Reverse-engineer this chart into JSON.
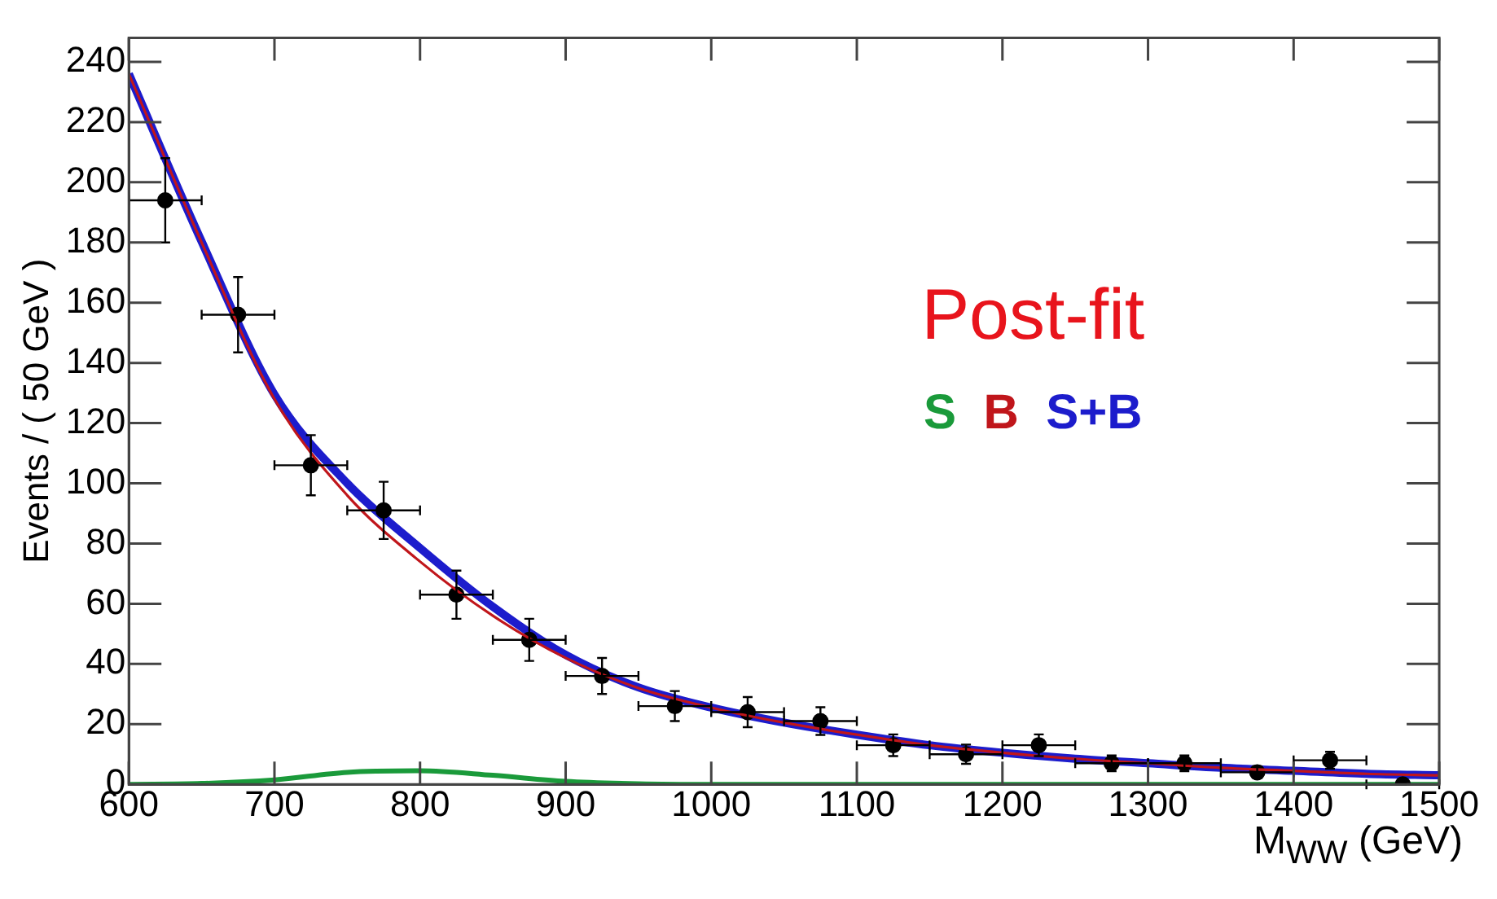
{
  "chart_data": {
    "type": "scatter",
    "ylabel": "Events / ( 50 GeV )",
    "xlabel": "M$_{WW}$ (GeV)",
    "annotations": [
      "Post-fit"
    ],
    "xlim": [
      600,
      1500
    ],
    "xticks": [
      600,
      700,
      800,
      900,
      1000,
      1100,
      1200,
      1300,
      1400,
      1500
    ],
    "ylim": [
      0,
      248
    ],
    "yticks": [
      0,
      20,
      40,
      60,
      80,
      100,
      120,
      140,
      160,
      180,
      200,
      220,
      240
    ],
    "grid": false,
    "legend": "right",
    "marker": "circle",
    "x": [
      625,
      675,
      725,
      775,
      825,
      875,
      925,
      975,
      1025,
      1075,
      1125,
      1175,
      1225,
      1275,
      1325,
      1375,
      1425,
      1475
    ],
    "values": [
      194,
      156,
      106,
      91,
      63,
      48,
      36,
      26,
      24,
      21,
      13,
      10,
      13,
      7,
      7,
      4,
      8,
      0
    ],
    "errors": [
      14,
      12.5,
      10,
      9.5,
      8,
      7,
      6,
      5,
      5,
      4.6,
      3.6,
      3.2,
      3.6,
      2.6,
      2.6,
      2,
      2.8,
      null
    ],
    "xerrors": [
      25,
      25,
      25,
      25,
      25,
      25,
      25,
      25,
      25,
      25,
      25,
      25,
      25,
      25,
      25,
      25,
      25,
      25
    ],
    "series": [
      {
        "name": "S",
        "type": "line",
        "marker": "none",
        "color": "#1a9a3a",
        "x": [
          600,
          650,
          700,
          750,
          800,
          850,
          900,
          950,
          1000,
          1500
        ],
        "values": [
          0,
          0.3,
          1.5,
          4,
          4.5,
          3,
          1,
          0.2,
          0,
          0
        ]
      },
      {
        "name": "B",
        "type": "line",
        "marker": "none",
        "color": "#c0161b",
        "x": [
          600,
          650,
          700,
          750,
          800,
          850,
          900,
          950,
          1000,
          1050,
          1100,
          1150,
          1200,
          1250,
          1300,
          1350,
          1400,
          1450,
          1500
        ],
        "values": [
          236,
          180,
          128,
          96,
          74,
          56,
          42,
          32,
          25.5,
          20.5,
          16.5,
          13,
          10.5,
          8.5,
          7,
          5.5,
          4.5,
          3.5,
          3
        ]
      },
      {
        "name": "S+B",
        "type": "line",
        "marker": "none",
        "color": "#1c1ccc",
        "x": [
          600,
          650,
          700,
          750,
          800,
          850,
          900,
          950,
          1000,
          1050,
          1100,
          1150,
          1200,
          1250,
          1300,
          1350,
          1400,
          1450,
          1500
        ],
        "values": [
          236,
          180.3,
          129.5,
          100,
          78.5,
          59,
          43,
          32.2,
          25.5,
          20.5,
          16.5,
          13,
          10.5,
          8.5,
          7,
          5.5,
          4.5,
          3.5,
          3
        ]
      }
    ]
  }
}
